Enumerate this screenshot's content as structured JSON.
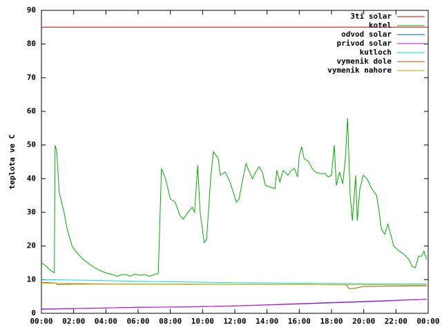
{
  "chart_data": {
    "type": "line",
    "ylabel": "teplota ve C",
    "xlim": [
      0,
      24
    ],
    "xticks": [
      {
        "value": 0,
        "label": "00:00"
      },
      {
        "value": 2,
        "label": "02:00"
      },
      {
        "value": 4,
        "label": "04:00"
      },
      {
        "value": 6,
        "label": "06:00"
      },
      {
        "value": 8,
        "label": "08:00"
      },
      {
        "value": 10,
        "label": "10:00"
      },
      {
        "value": 12,
        "label": "12:00"
      },
      {
        "value": 14,
        "label": "14:00"
      },
      {
        "value": 16,
        "label": "16:00"
      },
      {
        "value": 18,
        "label": "18:00"
      },
      {
        "value": 20,
        "label": "20:00"
      },
      {
        "value": 22,
        "label": "22:00"
      },
      {
        "value": 24,
        "label": "00:00"
      }
    ],
    "ylim": [
      0,
      90
    ],
    "yticks": [
      0,
      10,
      20,
      30,
      40,
      50,
      60,
      70,
      80,
      90
    ],
    "grid": false,
    "legend": "top-right",
    "series": [
      {
        "name": "3ti solar",
        "color": "#cc0000",
        "x": [
          0,
          24
        ],
        "values": [
          85,
          85
        ]
      },
      {
        "name": "kotel",
        "color": "#00aa00",
        "x": [
          0,
          0.3,
          0.5,
          0.8,
          0.85,
          0.95,
          1.1,
          1.4,
          1.6,
          1.9,
          2.2,
          2.6,
          3,
          3.5,
          4,
          4.4,
          4.7,
          5,
          5.3,
          5.5,
          5.8,
          6.1,
          6.4,
          6.7,
          7,
          7.25,
          7.45,
          7.7,
          8,
          8.3,
          8.6,
          8.8,
          9.1,
          9.35,
          9.5,
          9.7,
          9.85,
          10.1,
          10.25,
          10.5,
          10.67,
          10.97,
          11.1,
          11.4,
          11.7,
          11.9,
          12.1,
          12.26,
          12.5,
          12.7,
          12.9,
          13.1,
          13.3,
          13.5,
          13.7,
          13.9,
          14.2,
          14.5,
          14.6,
          14.8,
          15,
          15.3,
          15.5,
          15.7,
          15.9,
          16,
          16.15,
          16.3,
          16.6,
          16.8,
          17,
          17.3,
          17.6,
          17.8,
          18,
          18.17,
          18.3,
          18.5,
          18.7,
          18.86,
          19,
          19.16,
          19.3,
          19.5,
          19.6,
          19.76,
          19.97,
          20.2,
          20.5,
          20.8,
          20.96,
          21.1,
          21.3,
          21.5,
          21.7,
          21.86,
          22.2,
          22.5,
          22.8,
          23,
          23.2,
          23.4,
          23.6,
          23.74,
          23.9
        ],
        "values": [
          15,
          14,
          13,
          12,
          50,
          48,
          36,
          30,
          25,
          20,
          18,
          16,
          14.5,
          13,
          12,
          11.5,
          11,
          11.5,
          11.5,
          11,
          11.7,
          11.3,
          11.5,
          11,
          11.5,
          11.8,
          43,
          40,
          34,
          33,
          29,
          28,
          30,
          31.5,
          30,
          44,
          30,
          21,
          22,
          40,
          48,
          46,
          41,
          42,
          39,
          36,
          33,
          34,
          40,
          44.5,
          42,
          40,
          42,
          43.5,
          42,
          38,
          37.5,
          37,
          42.5,
          39,
          42.5,
          41,
          42.5,
          43,
          40.5,
          47,
          49.5,
          46,
          45,
          43,
          42,
          41.5,
          41.5,
          40.5,
          41,
          50,
          38,
          42,
          38.5,
          46,
          58,
          35,
          27.5,
          41,
          27.5,
          37,
          41,
          40,
          37,
          35,
          30,
          25,
          23.5,
          26.5,
          23,
          20,
          18.5,
          17.5,
          16,
          14,
          13.5,
          17,
          17,
          18.5,
          16
        ]
      },
      {
        "name": "odvod solar",
        "color": "#0055dd",
        "x": [
          0,
          3,
          6,
          9,
          12,
          15,
          18,
          21,
          23.9
        ],
        "values": [
          1.3,
          1.5,
          1.8,
          1.9,
          2.2,
          2.6,
          3.1,
          3.6,
          4.2
        ]
      },
      {
        "name": "privod solar",
        "color": "#cc00cc",
        "x": [
          0,
          3,
          6,
          9,
          12,
          15,
          18,
          21,
          23.9
        ],
        "values": [
          1.2,
          1.5,
          1.8,
          1.9,
          2.2,
          2.7,
          3.2,
          3.7,
          4.2
        ]
      },
      {
        "name": "kutloch",
        "color": "#00dddd",
        "x": [
          0,
          3,
          6,
          9,
          12,
          15,
          18,
          21,
          23.9
        ],
        "values": [
          10,
          9.8,
          9.5,
          9.3,
          9.1,
          9,
          8.9,
          8.8,
          8.8
        ]
      },
      {
        "name": "vymenik dole",
        "color": "#aa5500",
        "x": [
          0,
          0.9,
          1,
          2,
          6,
          9,
          12,
          15,
          18,
          18.9,
          19.1,
          19.5,
          20,
          23.9
        ],
        "values": [
          9.2,
          9,
          8.5,
          8.7,
          8.7,
          8.6,
          8.6,
          8.6,
          8.5,
          8.5,
          7.3,
          7.5,
          8,
          8.2
        ]
      },
      {
        "name": "vymenik nahore",
        "color": "#bbaa00",
        "x": [
          0,
          3,
          6,
          9,
          12,
          15,
          18,
          21,
          23.9
        ],
        "values": [
          9,
          8.8,
          8.7,
          8.7,
          8.6,
          8.6,
          8.5,
          8.5,
          8.4
        ]
      }
    ]
  }
}
